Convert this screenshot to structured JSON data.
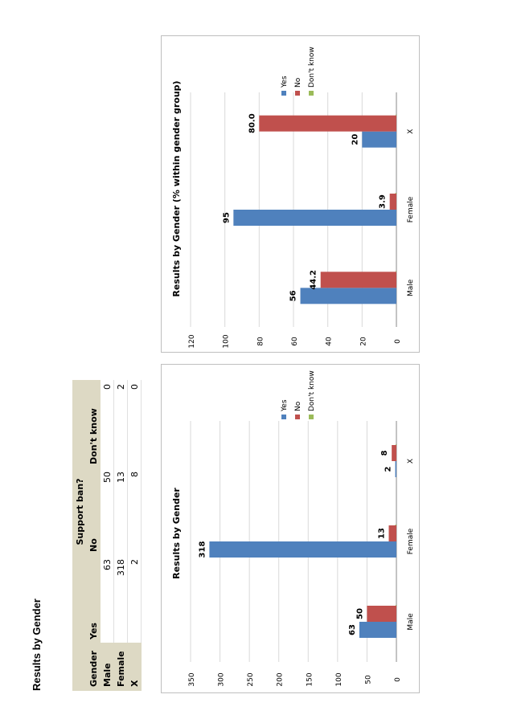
{
  "page_title": "Results by Gender",
  "table": {
    "group_header": "Support ban?",
    "col_headers": [
      "Gender",
      "Yes",
      "No",
      "Don't know"
    ],
    "rows": [
      {
        "label": "Male",
        "values": [
          "63",
          "50",
          "0"
        ]
      },
      {
        "label": "Female",
        "values": [
          "318",
          "13",
          "2"
        ]
      },
      {
        "label": "X",
        "values": [
          "2",
          "8",
          "0"
        ]
      }
    ]
  },
  "colors": {
    "yes": "#4f81bd",
    "no": "#c0504d",
    "dont_know": "#9bbb59",
    "grid": "#d9d9d9",
    "border": "#bfbfbf"
  },
  "chart_data": [
    {
      "type": "bar",
      "title": "Results by Gender",
      "categories": [
        "Male",
        "Female",
        "X"
      ],
      "series": [
        {
          "name": "Yes",
          "values": [
            63,
            318,
            2
          ],
          "labels": [
            "63",
            "318",
            "2"
          ]
        },
        {
          "name": "No",
          "values": [
            50,
            13,
            8
          ],
          "labels": [
            "50",
            "13",
            "8"
          ]
        },
        {
          "name": "Don't know",
          "values": [
            0,
            2,
            0
          ],
          "labels": [
            "",
            "",
            ""
          ]
        }
      ],
      "yticks": [
        0,
        50,
        100,
        150,
        200,
        250,
        300,
        350
      ],
      "ylim": [
        0,
        350
      ],
      "grid": true,
      "legend": "right"
    },
    {
      "type": "bar",
      "title": "Results by Gender (% within gender group)",
      "categories": [
        "Male",
        "Female",
        "X"
      ],
      "series": [
        {
          "name": "Yes",
          "values": [
            56,
            95,
            20
          ],
          "labels": [
            "56",
            "95",
            "20"
          ]
        },
        {
          "name": "No",
          "values": [
            44.2,
            3.9,
            80.0
          ],
          "labels": [
            "44.2",
            "3.9",
            "80.0"
          ]
        },
        {
          "name": "Don't know",
          "values": [
            0,
            0.6,
            0
          ],
          "labels": [
            "",
            "",
            ""
          ]
        }
      ],
      "yticks": [
        0,
        20,
        40,
        60,
        80,
        100,
        120
      ],
      "ylim": [
        0,
        120
      ],
      "grid": true,
      "legend": "right"
    }
  ]
}
